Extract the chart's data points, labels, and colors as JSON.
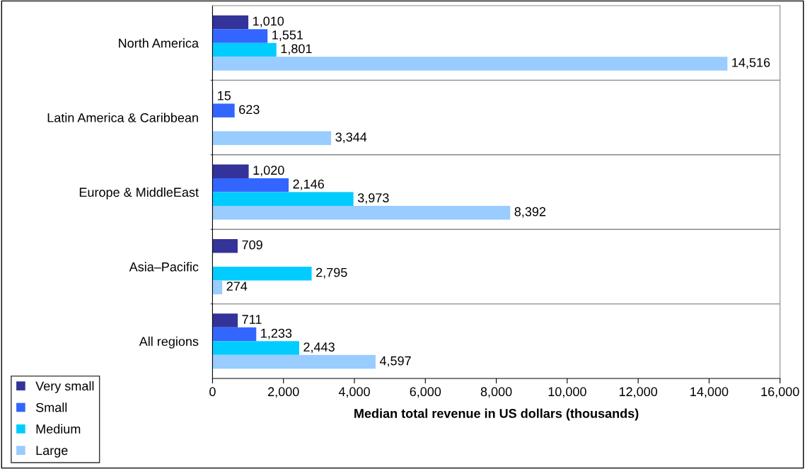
{
  "chart_data": {
    "type": "bar",
    "orientation": "horizontal",
    "xlabel": "Median total revenue in US dollars (thousands)",
    "categories": [
      "North America",
      "Latin America & Caribbean",
      "Europe & MiddleEast",
      "Asia–Pacific",
      "All regions"
    ],
    "series": [
      {
        "name": "Very small",
        "color": "#333399",
        "values": [
          1010,
          15,
          1020,
          709,
          711
        ],
        "value_labels": [
          "1,010",
          "15",
          "1,020",
          "709",
          "711"
        ]
      },
      {
        "name": "Small",
        "color": "#3366ff",
        "values": [
          1551,
          623,
          2146,
          null,
          1233
        ],
        "value_labels": [
          "1,551",
          "623",
          "2,146",
          null,
          "1,233"
        ]
      },
      {
        "name": "Medium",
        "color": "#00ccff",
        "values": [
          1801,
          null,
          3973,
          2795,
          2443
        ],
        "value_labels": [
          "1,801",
          null,
          "3,973",
          "2,795",
          "2,443"
        ]
      },
      {
        "name": "Large",
        "color": "#99ccff",
        "values": [
          14516,
          3344,
          8392,
          274,
          4597
        ],
        "value_labels": [
          "14,516",
          "3,344",
          "8,392",
          "274",
          "4,597"
        ]
      }
    ],
    "xlim": [
      0,
      16000
    ],
    "xticks": [
      0,
      {
        "value": 2000,
        "label": "2,000"
      },
      {
        "value": 4000,
        "label": "4,000"
      },
      {
        "value": 6000,
        "label": "6,000"
      },
      {
        "value": 8000,
        "label": "8,000"
      },
      {
        "value": 10000,
        "label": "10,000"
      },
      {
        "value": 12000,
        "label": "12,000"
      },
      {
        "value": 14000,
        "label": "14,000"
      },
      {
        "value": 16000,
        "label": "16,000"
      }
    ],
    "grid": "y",
    "legend": "bottom left"
  }
}
